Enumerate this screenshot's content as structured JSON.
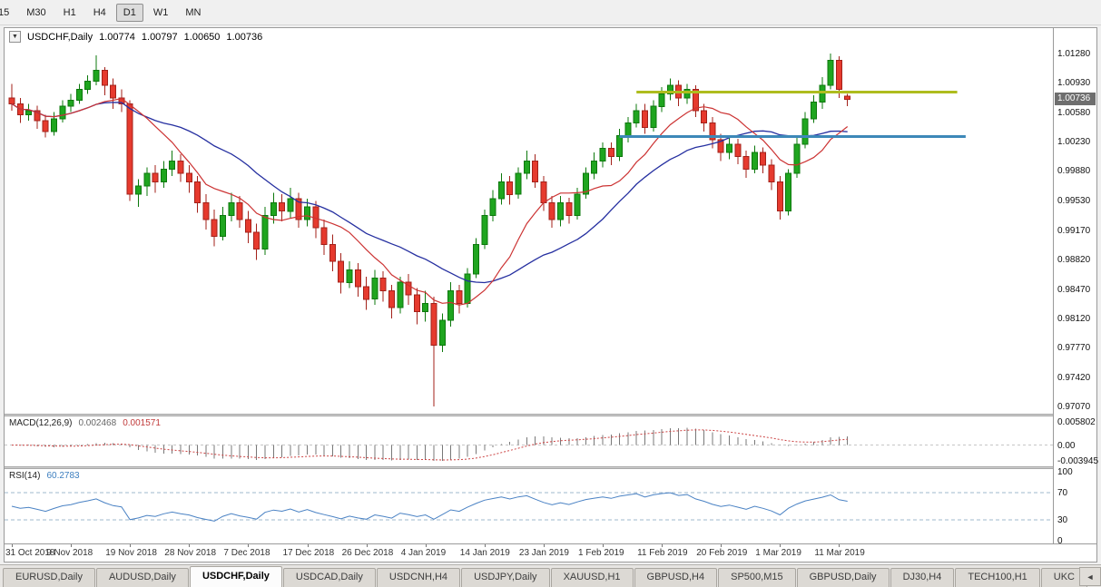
{
  "toolbar": {
    "timeframes": [
      "15",
      "M30",
      "H1",
      "H4",
      "D1",
      "W1",
      "MN"
    ],
    "active": "D1"
  },
  "chart_header": {
    "collapse_glyph": "▼",
    "symbol": "USDCHF,Daily",
    "open": "1.00774",
    "high": "1.00797",
    "low": "1.00650",
    "close": "1.00736"
  },
  "chart_data": {
    "type": "candlestick",
    "symbol": "USDCHF",
    "timeframe": "Daily",
    "candles": [
      [
        1.0075,
        1.0092,
        1.006,
        1.0068
      ],
      [
        1.0068,
        1.0075,
        1.0045,
        1.0055
      ],
      [
        1.0055,
        1.0068,
        1.0048,
        1.006
      ],
      [
        1.006,
        1.0066,
        1.0038,
        1.0048
      ],
      [
        1.0048,
        1.0055,
        1.0028,
        1.0035
      ],
      [
        1.0035,
        1.0058,
        1.003,
        1.005
      ],
      [
        1.005,
        1.0072,
        1.0046,
        1.0065
      ],
      [
        1.0065,
        1.008,
        1.0058,
        1.0072
      ],
      [
        1.0072,
        1.0092,
        1.0068,
        1.0085
      ],
      [
        1.0085,
        1.0102,
        1.008,
        1.0095
      ],
      [
        1.0095,
        1.0126,
        1.009,
        1.0108
      ],
      [
        1.0108,
        1.0112,
        1.0078,
        1.009
      ],
      [
        1.009,
        1.0098,
        1.0062,
        1.0075
      ],
      [
        1.0075,
        1.0085,
        1.0058,
        1.0068
      ],
      [
        1.0068,
        1.0072,
        0.9952,
        0.996
      ],
      [
        0.996,
        0.9978,
        0.9945,
        0.997
      ],
      [
        0.997,
        0.9992,
        0.9958,
        0.9985
      ],
      [
        0.9985,
        0.9995,
        0.9962,
        0.9975
      ],
      [
        0.9975,
        1.0,
        0.9968,
        0.999
      ],
      [
        0.999,
        1.0012,
        0.9982,
        1.0
      ],
      [
        1.0,
        1.0008,
        0.9975,
        0.9985
      ],
      [
        0.9985,
        0.9995,
        0.9962,
        0.9975
      ],
      [
        0.9975,
        0.9982,
        0.9938,
        0.995
      ],
      [
        0.995,
        0.996,
        0.9918,
        0.993
      ],
      [
        0.993,
        0.9942,
        0.9898,
        0.991
      ],
      [
        0.991,
        0.9945,
        0.9905,
        0.9935
      ],
      [
        0.9935,
        0.9962,
        0.9928,
        0.995
      ],
      [
        0.995,
        0.9958,
        0.992,
        0.993
      ],
      [
        0.993,
        0.994,
        0.9902,
        0.9915
      ],
      [
        0.9915,
        0.9925,
        0.9882,
        0.9895
      ],
      [
        0.9895,
        0.9945,
        0.9888,
        0.9935
      ],
      [
        0.9935,
        0.9962,
        0.9925,
        0.995
      ],
      [
        0.995,
        0.996,
        0.9928,
        0.994
      ],
      [
        0.994,
        0.9968,
        0.9932,
        0.9955
      ],
      [
        0.9955,
        0.9962,
        0.992,
        0.993
      ],
      [
        0.993,
        0.9955,
        0.9922,
        0.9945
      ],
      [
        0.9945,
        0.9952,
        0.9908,
        0.992
      ],
      [
        0.992,
        0.993,
        0.9888,
        0.99
      ],
      [
        0.99,
        0.9912,
        0.9868,
        0.988
      ],
      [
        0.988,
        0.989,
        0.9842,
        0.9855
      ],
      [
        0.9855,
        0.988,
        0.9848,
        0.987
      ],
      [
        0.987,
        0.9878,
        0.9838,
        0.985
      ],
      [
        0.985,
        0.9862,
        0.9822,
        0.9835
      ],
      [
        0.9835,
        0.987,
        0.9828,
        0.986
      ],
      [
        0.986,
        0.9868,
        0.9832,
        0.9845
      ],
      [
        0.9845,
        0.9852,
        0.9812,
        0.9825
      ],
      [
        0.9825,
        0.9862,
        0.9818,
        0.9855
      ],
      [
        0.9855,
        0.9865,
        0.9828,
        0.984
      ],
      [
        0.984,
        0.9848,
        0.9805,
        0.982
      ],
      [
        0.982,
        0.9845,
        0.9808,
        0.983
      ],
      [
        0.983,
        0.9838,
        0.9707,
        0.978
      ],
      [
        0.978,
        0.9818,
        0.9772,
        0.981
      ],
      [
        0.981,
        0.9855,
        0.9802,
        0.9845
      ],
      [
        0.9845,
        0.9852,
        0.9818,
        0.983
      ],
      [
        0.983,
        0.9872,
        0.9825,
        0.9865
      ],
      [
        0.9865,
        0.9908,
        0.986,
        0.99
      ],
      [
        0.99,
        0.9942,
        0.9895,
        0.9935
      ],
      [
        0.9935,
        0.9965,
        0.9928,
        0.9955
      ],
      [
        0.9955,
        0.9985,
        0.9948,
        0.9975
      ],
      [
        0.9975,
        0.9982,
        0.9948,
        0.996
      ],
      [
        0.996,
        0.9992,
        0.9955,
        0.9985
      ],
      [
        0.9985,
        1.0012,
        0.9978,
        1.0
      ],
      [
        1.0,
        1.0008,
        0.9968,
        0.9975
      ],
      [
        0.9975,
        0.9982,
        0.994,
        0.995
      ],
      [
        0.995,
        0.9958,
        0.992,
        0.993
      ],
      [
        0.993,
        0.9958,
        0.9922,
        0.995
      ],
      [
        0.995,
        0.9956,
        0.9925,
        0.9935
      ],
      [
        0.9935,
        0.9968,
        0.993,
        0.996
      ],
      [
        0.996,
        0.9992,
        0.9955,
        0.9985
      ],
      [
        0.9985,
        1.001,
        0.9978,
        1.0
      ],
      [
        1.0,
        1.0022,
        0.9992,
        1.0015
      ],
      [
        1.0015,
        1.0022,
        0.9995,
        1.0005
      ],
      [
        1.0005,
        1.0038,
        1.0,
        1.003
      ],
      [
        1.003,
        1.0052,
        1.0022,
        1.0045
      ],
      [
        1.0045,
        1.0068,
        1.004,
        1.006
      ],
      [
        1.006,
        1.0068,
        1.0032,
        1.004
      ],
      [
        1.004,
        1.0072,
        1.0035,
        1.0065
      ],
      [
        1.0065,
        1.0088,
        1.0058,
        1.008
      ],
      [
        1.008,
        1.0098,
        1.0072,
        1.009
      ],
      [
        1.009,
        1.0096,
        1.0065,
        1.0075
      ],
      [
        1.0075,
        1.0092,
        1.0068,
        1.0085
      ],
      [
        1.0085,
        1.009,
        1.0052,
        1.006
      ],
      [
        1.006,
        1.0068,
        1.0035,
        1.0045
      ],
      [
        1.0045,
        1.0052,
        1.0015,
        1.0025
      ],
      [
        1.0025,
        1.0032,
        1.0,
        1.001
      ],
      [
        1.001,
        1.003,
        1.0002,
        1.002
      ],
      [
        1.002,
        1.0026,
        0.9996,
        1.0005
      ],
      [
        1.0005,
        1.0012,
        0.998,
        0.999
      ],
      [
        0.999,
        1.0018,
        0.9985,
        1.001
      ],
      [
        1.001,
        1.0016,
        0.9985,
        0.9995
      ],
      [
        0.9995,
        1.0002,
        0.9965,
        0.9975
      ],
      [
        0.9975,
        0.9982,
        0.993,
        0.994
      ],
      [
        0.994,
        0.999,
        0.9935,
        0.9985
      ],
      [
        0.9985,
        1.0028,
        0.998,
        1.002
      ],
      [
        1.002,
        1.0058,
        1.0015,
        1.005
      ],
      [
        1.005,
        1.0078,
        1.0045,
        1.007
      ],
      [
        1.007,
        1.01,
        1.0062,
        1.009
      ],
      [
        1.009,
        1.0128,
        1.0085,
        1.012
      ],
      [
        1.012,
        1.0125,
        1.0075,
        1.0085
      ],
      [
        1.00774,
        1.00797,
        1.0065,
        1.00736
      ]
    ],
    "overlays": {
      "ma_fast_period": 10,
      "ma_slow_period": 21,
      "hlines": [
        {
          "name": "resistance-line",
          "price": 1.0082,
          "from": 74,
          "to": 112,
          "color": "#aebc1e",
          "width": 3
        },
        {
          "name": "support-line",
          "price": 1.0029,
          "from": 72,
          "to": 113,
          "color": "#3d88b8",
          "width": 3
        }
      ]
    },
    "y_axis": {
      "ticks": [
        "1.01280",
        "1.00930",
        "1.00580",
        "1.00230",
        "0.99880",
        "0.99530",
        "0.99170",
        "0.98820",
        "0.98470",
        "0.98120",
        "0.97770",
        "0.97420",
        "0.97070"
      ],
      "current": "1.00736"
    },
    "x_axis_dates": [
      {
        "index": 0,
        "label": "31 Oct 2018"
      },
      {
        "index": 7,
        "label": "9 Nov 2018"
      },
      {
        "index": 14,
        "label": "19 Nov 2018"
      },
      {
        "index": 21,
        "label": "28 Nov 2018"
      },
      {
        "index": 28,
        "label": "7 Dec 2018"
      },
      {
        "index": 35,
        "label": "17 Dec 2018"
      },
      {
        "index": 42,
        "label": "26 Dec 2018"
      },
      {
        "index": 49,
        "label": "4 Jan 2019"
      },
      {
        "index": 56,
        "label": "14 Jan 2019"
      },
      {
        "index": 63,
        "label": "23 Jan 2019"
      },
      {
        "index": 70,
        "label": "1 Feb 2019"
      },
      {
        "index": 77,
        "label": "11 Feb 2019"
      },
      {
        "index": 84,
        "label": "20 Feb 2019"
      },
      {
        "index": 91,
        "label": "1 Mar 2019"
      },
      {
        "index": 98,
        "label": "11 Mar 2019"
      }
    ],
    "indicators": {
      "macd": {
        "label": "MACD(12,26,9)",
        "periods": [
          12,
          26,
          9
        ],
        "value_main": "0.002468",
        "value_signal": "0.001571",
        "axis_ticks": [
          "0.005802",
          "0.00",
          "-0.003945"
        ]
      },
      "rsi": {
        "label": "RSI(14)",
        "period": 14,
        "value": "60.2783",
        "axis_ticks": [
          "100",
          "70",
          "30",
          "0"
        ],
        "levels": [
          70,
          30
        ]
      }
    }
  },
  "tabs": {
    "items": [
      "EURUSD,Daily",
      "AUDUSD,Daily",
      "USDCHF,Daily",
      "USDCAD,Daily",
      "USDCNH,H4",
      "USDJPY,Daily",
      "XAUUSD,H1",
      "GBPUSD,H4",
      "SP500,M15",
      "GBPUSD,Daily",
      "DJ30,H4",
      "TECH100,H1",
      "UKC"
    ],
    "active_index": 2,
    "scroll_left_glyph": "◄"
  },
  "colors": {
    "up": "#1fa51f",
    "up_border": "#0c780c",
    "down": "#e63a2e",
    "down_border": "#a3211a",
    "ma_fast": "#cc3333",
    "ma_slow": "#252fa0",
    "macd_hist": "#787878",
    "macd_signal": "#cc4444",
    "rsi_line": "#4a82c4",
    "price_badge_bg": "#6e6e6e"
  }
}
